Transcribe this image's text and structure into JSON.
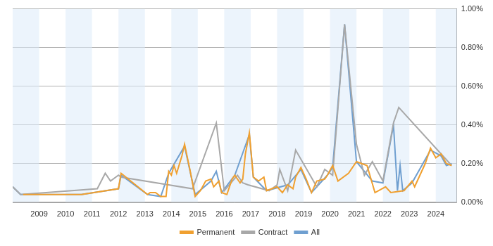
{
  "chart_data": {
    "type": "line",
    "xlim": [
      2008,
      2024.8
    ],
    "xticks": [
      2009,
      2010,
      2011,
      2012,
      2013,
      2014,
      2015,
      2016,
      2017,
      2018,
      2019,
      2020,
      2021,
      2022,
      2023,
      2024
    ],
    "ylim": [
      0,
      1
    ],
    "yticks": [
      {
        "value": 0,
        "label": "0.00%"
      },
      {
        "value": 0.2,
        "label": "0.20%"
      },
      {
        "value": 0.4,
        "label": "0.40%"
      },
      {
        "value": 0.6,
        "label": "0.60%"
      },
      {
        "value": 0.8,
        "label": "0.80%"
      },
      {
        "value": 1,
        "label": "1.00%"
      }
    ],
    "grid": true,
    "legend": "bottom",
    "series": [
      {
        "name": "Permanent",
        "color": "#f0a030",
        "x": [
          2008.4,
          2010.6,
          2012.0,
          2012.1,
          2013.1,
          2013.2,
          2013.4,
          2013.6,
          2013.8,
          2013.9,
          2014.0,
          2014.1,
          2014.2,
          2014.4,
          2014.5,
          2014.7,
          2014.9,
          2015.1,
          2015.3,
          2015.5,
          2015.6,
          2015.8,
          2015.9,
          2016.1,
          2016.3,
          2016.4,
          2016.6,
          2016.7,
          2016.8,
          2016.95,
          2017.1,
          2017.3,
          2017.5,
          2017.6,
          2017.8,
          2018.0,
          2018.2,
          2018.4,
          2018.6,
          2018.7,
          2018.9,
          2019.1,
          2019.3,
          2019.5,
          2019.8,
          2019.9,
          2020.1,
          2020.3,
          2020.7,
          2021.0,
          2021.4,
          2021.7,
          2022.1,
          2022.3,
          2022.8,
          2023.1,
          2023.2,
          2023.6,
          2023.8,
          2024.0,
          2024.2,
          2024.4,
          2024.6
        ],
        "values": [
          0.04,
          0.04,
          0.07,
          0.15,
          0.04,
          0.05,
          0.05,
          0.03,
          0.03,
          0.16,
          0.14,
          0.19,
          0.15,
          0.24,
          0.3,
          0.17,
          0.03,
          0.06,
          0.11,
          0.12,
          0.08,
          0.11,
          0.05,
          0.04,
          0.12,
          0.14,
          0.1,
          0.12,
          0.25,
          0.36,
          0.13,
          0.11,
          0.13,
          0.06,
          0.07,
          0.08,
          0.05,
          0.09,
          0.07,
          0.13,
          0.18,
          0.12,
          0.05,
          0.11,
          0.12,
          0.14,
          0.19,
          0.11,
          0.15,
          0.21,
          0.19,
          0.05,
          0.08,
          0.05,
          0.06,
          0.11,
          0.08,
          0.2,
          0.28,
          0.23,
          0.25,
          0.2,
          0.19
        ]
      },
      {
        "name": "Contract",
        "color": "#a8a8a8",
        "x": [
          2008.0,
          2008.3,
          2011.2,
          2011.5,
          2011.7,
          2012.0,
          2012.1,
          2014.8,
          2015.7,
          2016.0,
          2016.5,
          2016.7,
          2016.9,
          2017.7,
          2018.0,
          2018.1,
          2018.4,
          2018.7,
          2019.5,
          2019.8,
          2020.1,
          2020.55,
          2021.0,
          2021.3,
          2021.6,
          2022.0,
          2022.4,
          2022.6,
          2024.6
        ],
        "values": [
          0.08,
          0.04,
          0.07,
          0.15,
          0.11,
          0.14,
          0.13,
          0.07,
          0.41,
          0.06,
          0.14,
          0.1,
          0.09,
          0.06,
          0.09,
          0.17,
          0.06,
          0.27,
          0.08,
          0.17,
          0.14,
          0.92,
          0.3,
          0.14,
          0.21,
          0.11,
          0.41,
          0.49,
          0.19
        ]
      },
      {
        "name": "All",
        "color": "#6f9fd0",
        "x": [
          2008.0,
          2008.3,
          2010.6,
          2012.0,
          2012.1,
          2013.1,
          2013.6,
          2013.9,
          2014.5,
          2014.9,
          2015.5,
          2015.7,
          2015.9,
          2016.4,
          2016.95,
          2017.1,
          2017.6,
          2018.4,
          2018.9,
          2019.3,
          2019.9,
          2020.1,
          2020.55,
          2021.0,
          2021.3,
          2021.6,
          2022.0,
          2022.4,
          2022.55,
          2022.65,
          2022.75,
          2023.1,
          2023.8,
          2024.2,
          2024.4,
          2024.6
        ],
        "values": [
          0.08,
          0.04,
          0.04,
          0.07,
          0.14,
          0.04,
          0.03,
          0.15,
          0.29,
          0.04,
          0.11,
          0.16,
          0.05,
          0.14,
          0.35,
          0.13,
          0.06,
          0.09,
          0.17,
          0.05,
          0.14,
          0.18,
          0.92,
          0.21,
          0.16,
          0.11,
          0.1,
          0.4,
          0.06,
          0.19,
          0.06,
          0.1,
          0.27,
          0.24,
          0.19,
          0.2
        ]
      }
    ]
  }
}
